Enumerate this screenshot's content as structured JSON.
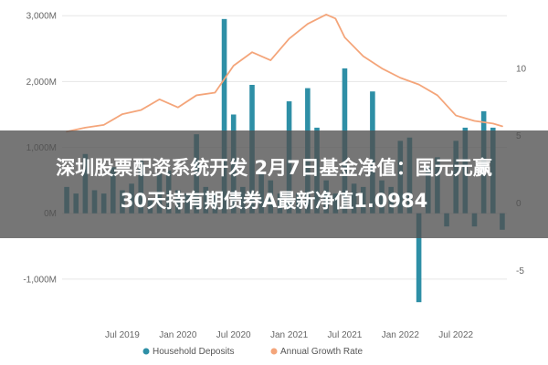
{
  "headline": {
    "line1": "深圳股票配资系统开发 2月7日基金净值：国元元赢",
    "line2": "30天持有期债券A最新净值1.0984"
  },
  "colors": {
    "bar": "#2e8fa6",
    "line": "#f4a57a",
    "grid": "#e6e6e6",
    "text": "#666666",
    "band": "#505050"
  },
  "chart_data": {
    "type": "bar",
    "left_axis": {
      "ticks": [
        "3,000M",
        "2,000M",
        "1,000M",
        "0M",
        "-1,000M"
      ],
      "ylim": [
        -1500,
        3100
      ]
    },
    "right_axis": {
      "ticks": [
        "10",
        "5",
        "0",
        "-5"
      ],
      "ylim": [
        -8.1,
        14.4
      ]
    },
    "x_tick_labels": [
      "Jul 2019",
      "Jan 2020",
      "Jul 2020",
      "Jan 2021",
      "Jul 2021",
      "Jan 2022",
      "Jul 2022"
    ],
    "x_ticks": [
      "2019-07",
      "2020-01",
      "2020-07",
      "2021-01",
      "2021-07",
      "2022-01",
      "2022-07"
    ],
    "x_range": [
      "2019-01",
      "2022-12"
    ],
    "legend": [
      "Household Deposits",
      "Annual Growth Rate"
    ],
    "legend_position": "bottom",
    "grid": true,
    "series": [
      {
        "name": "Household Deposits",
        "type": "bar",
        "axis": "left",
        "x": [
          "2019-01",
          "2019-02",
          "2019-03",
          "2019-04",
          "2019-05",
          "2019-06",
          "2019-07",
          "2019-08",
          "2019-09",
          "2019-10",
          "2019-11",
          "2019-12",
          "2020-01",
          "2020-02",
          "2020-03",
          "2020-04",
          "2020-05",
          "2020-06",
          "2020-07",
          "2020-08",
          "2020-09",
          "2020-10",
          "2020-11",
          "2020-12",
          "2021-01",
          "2021-02",
          "2021-03",
          "2021-04",
          "2021-05",
          "2021-06",
          "2021-07",
          "2021-08",
          "2021-09",
          "2021-10",
          "2021-11",
          "2021-12",
          "2022-01",
          "2022-02",
          "2022-03",
          "2022-04",
          "2022-05",
          "2022-06",
          "2022-07",
          "2022-08",
          "2022-09",
          "2022-10",
          "2022-11",
          "2022-12"
        ],
        "values": [
          400,
          300,
          900,
          350,
          300,
          700,
          350,
          450,
          800,
          200,
          600,
          650,
          350,
          300,
          1200,
          400,
          300,
          2950,
          1500,
          400,
          1950,
          600,
          500,
          300,
          1700,
          300,
          1900,
          1300,
          500,
          300,
          2200,
          450,
          400,
          1850,
          500,
          400,
          1100,
          1150,
          -1350,
          700,
          850,
          -200,
          1100,
          1300,
          -200,
          1550,
          1300,
          -250
        ]
      },
      {
        "name": "Annual Growth Rate",
        "type": "line",
        "axis": "right",
        "x": [
          "2019-01",
          "2019-03",
          "2019-05",
          "2019-07",
          "2019-09",
          "2019-11",
          "2020-01",
          "2020-03",
          "2020-05",
          "2020-07",
          "2020-09",
          "2020-11",
          "2021-01",
          "2021-03",
          "2021-05",
          "2021-06",
          "2021-07",
          "2021-09",
          "2021-11",
          "2022-01",
          "2022-03",
          "2022-05",
          "2022-07",
          "2022-09",
          "2022-11",
          "2022-12"
        ],
        "values": [
          5.3,
          5.6,
          5.8,
          6.6,
          6.9,
          7.7,
          7.1,
          8.0,
          8.2,
          10.2,
          11.2,
          10.6,
          12.2,
          13.3,
          14.0,
          13.7,
          12.3,
          10.9,
          10.0,
          9.3,
          8.8,
          8.0,
          6.5,
          6.1,
          5.9,
          5.7
        ]
      }
    ]
  }
}
